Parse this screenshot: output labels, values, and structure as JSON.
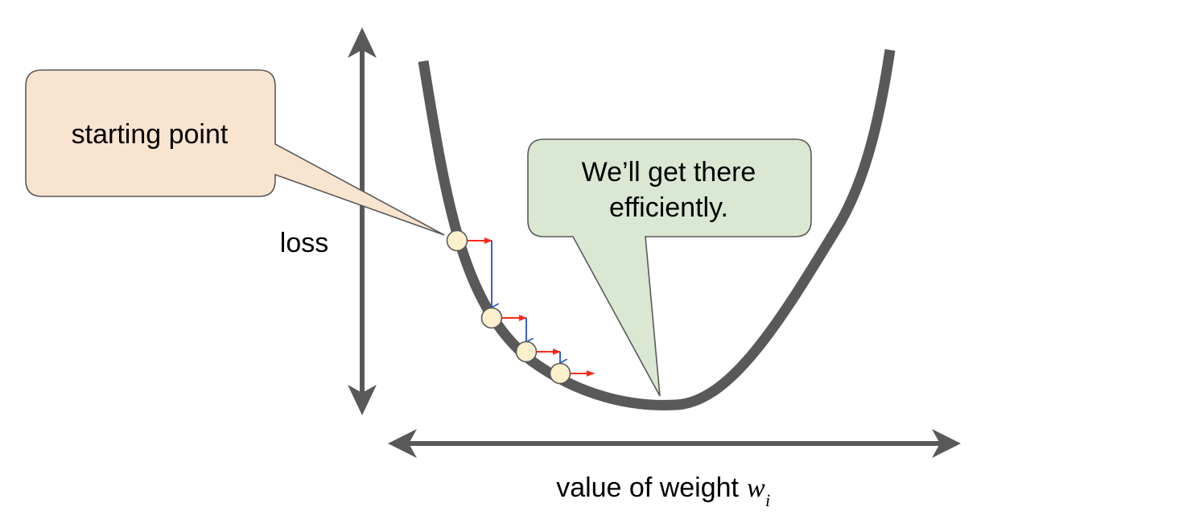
{
  "y_axis_label": "loss",
  "x_axis_label": "value of weight",
  "x_axis_symbol": "w",
  "x_axis_subscript": "i",
  "callouts": {
    "start": "starting point",
    "goal_line1": "We’ll get there",
    "goal_line2": "efficiently."
  },
  "colors": {
    "curve": "#595959",
    "axis": "#595959",
    "point_fill": "#fdf1cd",
    "point_stroke": "#595959",
    "step_arrow": "#ff2a1a",
    "drop_arrow": "#1f4fcf",
    "start_callout_fill": "#f9e4cf",
    "goal_callout_fill": "#dae8d3",
    "callout_stroke": "#595959"
  }
}
